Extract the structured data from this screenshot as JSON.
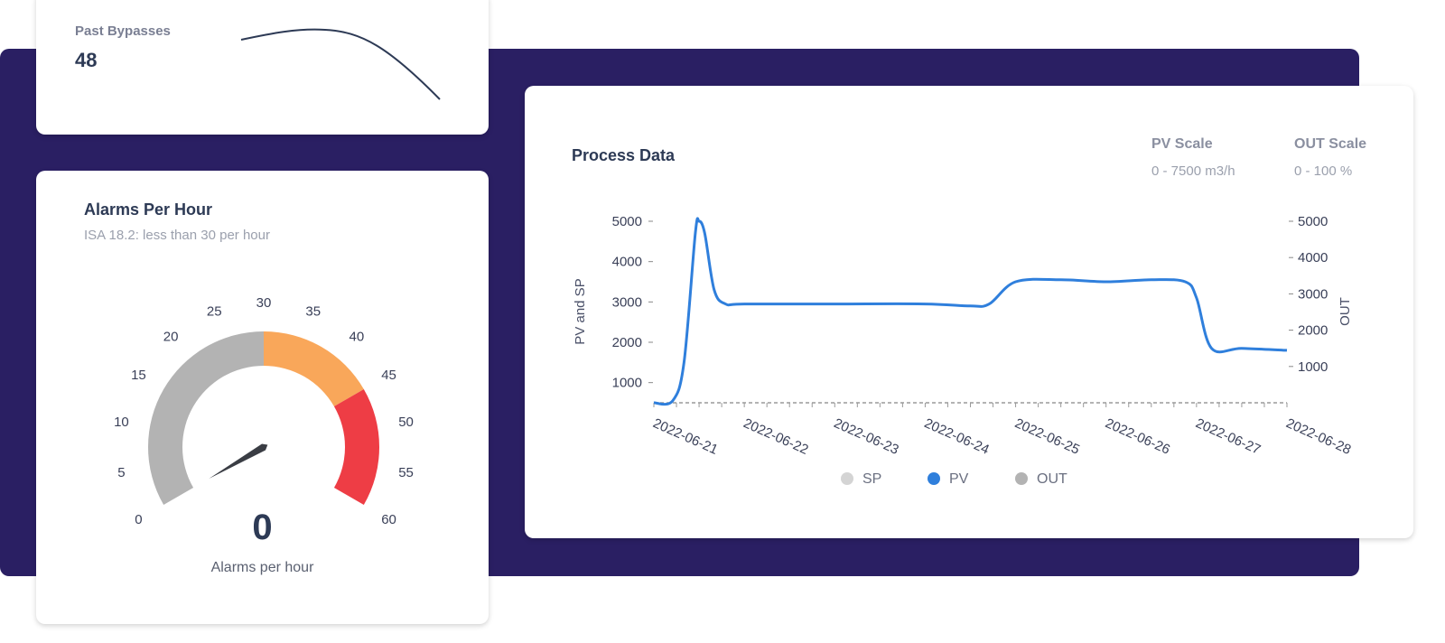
{
  "colors": {
    "banner": "#2a1f63",
    "gauge_normal": "#b3b3b3",
    "gauge_warning": "#f9a75a",
    "gauge_critical": "#ee3d45",
    "pv_line": "#2f7fdc",
    "sp_legend": "#d4d4d4",
    "out_legend": "#b3b3b3"
  },
  "past_bypasses": {
    "label": "Past Bypasses",
    "value": "48"
  },
  "alarms": {
    "title": "Alarms Per Hour",
    "subtitle": "ISA 18.2: less than 30 per hour",
    "value": "0",
    "unit_label": "Alarms per hour",
    "gauge": {
      "min": 0,
      "max": 60,
      "value": 0,
      "ticks": [
        "0",
        "5",
        "10",
        "15",
        "20",
        "25",
        "30",
        "35",
        "40",
        "45",
        "50",
        "55",
        "60"
      ],
      "bands": [
        {
          "from": 0,
          "to": 30,
          "color": "#b3b3b3"
        },
        {
          "from": 30,
          "to": 45,
          "color": "#f9a75a"
        },
        {
          "from": 45,
          "to": 60,
          "color": "#ee3d45"
        }
      ]
    }
  },
  "process": {
    "title": "Process Data",
    "pv_scale_label": "PV Scale",
    "pv_scale_value": "0 - 7500 m3/h",
    "out_scale_label": "OUT Scale",
    "out_scale_value": "0 - 100 %"
  },
  "chart_data": {
    "type": "line",
    "ylabel": "PV and SP",
    "y2label": "OUT",
    "ylim": [
      500,
      5000
    ],
    "y2lim": [
      0,
      5000
    ],
    "y_ticks": [
      "5000",
      "4000",
      "3000",
      "2000",
      "1000"
    ],
    "y2_ticks": [
      "5000",
      "4000",
      "3000",
      "2000",
      "1000"
    ],
    "x_ticks": [
      "2022-06-21",
      "2022-06-22",
      "2022-06-23",
      "2022-06-24",
      "2022-06-25",
      "2022-06-26",
      "2022-06-27",
      "2022-06-28"
    ],
    "legend": [
      "SP",
      "PV",
      "OUT"
    ],
    "legend_position": "bottom",
    "series": [
      {
        "name": "PV",
        "points": [
          [
            "2022-06-21 00:00",
            500
          ],
          [
            "2022-06-21 05:00",
            550
          ],
          [
            "2022-06-21 08:00",
            1500
          ],
          [
            "2022-06-21 11:00",
            4700
          ],
          [
            "2022-06-21 12:00",
            5000
          ],
          [
            "2022-06-21 13:30",
            4700
          ],
          [
            "2022-06-21 16:00",
            3300
          ],
          [
            "2022-06-21 19:00",
            2950
          ],
          [
            "2022-06-22 00:00",
            2950
          ],
          [
            "2022-06-23 00:00",
            2950
          ],
          [
            "2022-06-24 00:00",
            2950
          ],
          [
            "2022-06-24 12:00",
            2900
          ],
          [
            "2022-06-24 17:00",
            2950
          ],
          [
            "2022-06-25 00:00",
            3500
          ],
          [
            "2022-06-25 12:00",
            3550
          ],
          [
            "2022-06-26 00:00",
            3500
          ],
          [
            "2022-06-26 12:00",
            3550
          ],
          [
            "2022-06-26 21:00",
            3500
          ],
          [
            "2022-06-27 00:00",
            3100
          ],
          [
            "2022-06-27 04:00",
            1850
          ],
          [
            "2022-06-27 12:00",
            1850
          ],
          [
            "2022-06-28 00:00",
            1800
          ]
        ]
      }
    ]
  }
}
